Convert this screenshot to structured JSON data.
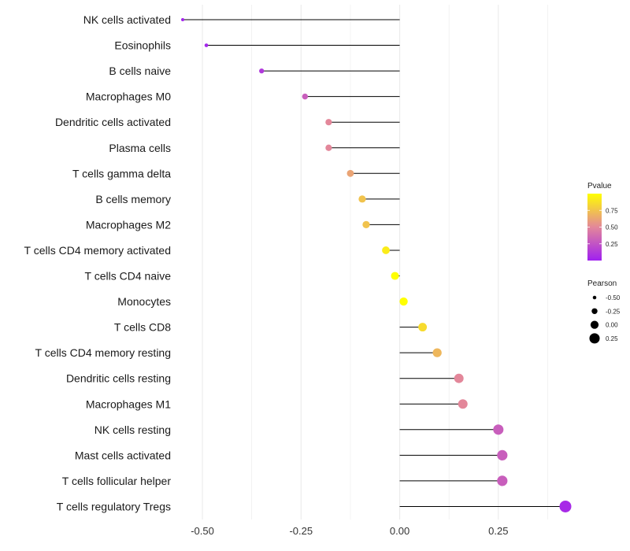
{
  "chart_data": {
    "type": "lollipop",
    "title": "",
    "xlabel": "",
    "ylabel": "",
    "xlim": [
      -0.55,
      0.44
    ],
    "x_ticks": [
      -0.5,
      -0.25,
      0.0,
      0.25
    ],
    "x_tick_labels": [
      "-0.50",
      "-0.25",
      "0.00",
      "0.25"
    ],
    "grid": true,
    "categories": [
      "NK cells activated",
      "Eosinophils",
      "B cells naive",
      "Macrophages M0",
      "Dendritic cells activated",
      "Plasma cells",
      "T cells gamma delta",
      "B cells memory",
      "Macrophages M2",
      "T cells CD4 memory activated",
      "T cells CD4 naive",
      "Monocytes",
      "T cells CD8",
      "T cells CD4 memory resting",
      "Dendritic cells resting",
      "Macrophages M1",
      "NK cells resting",
      "Mast cells activated",
      "T cells follicular helper",
      "T cells regulatory  Tregs"
    ],
    "pearson": [
      -0.55,
      -0.49,
      -0.35,
      -0.24,
      -0.18,
      -0.18,
      -0.125,
      -0.095,
      -0.085,
      -0.035,
      -0.012,
      0.01,
      0.058,
      0.095,
      0.15,
      0.16,
      0.25,
      0.26,
      0.26,
      0.42
    ],
    "pvalue": [
      0.02,
      0.03,
      0.12,
      0.3,
      0.5,
      0.5,
      0.62,
      0.75,
      0.75,
      0.92,
      1.0,
      1.0,
      0.85,
      0.7,
      0.5,
      0.5,
      0.3,
      0.3,
      0.3,
      0.05
    ],
    "color_legend": {
      "title": "Pvalue",
      "ticks": [
        0.25,
        0.5,
        0.75
      ],
      "tick_labels": [
        "0.25",
        "0.50",
        "0.75"
      ],
      "low_color": "#A020F0",
      "mid_color": "#E3879A",
      "high_color": "#FFFF00",
      "range": [
        0.0,
        1.0
      ]
    },
    "size_legend": {
      "title": "Pearson",
      "values": [
        -0.5,
        -0.25,
        0.0,
        0.25
      ],
      "labels": [
        "-0.50",
        "-0.25",
        "0.00",
        "0.25"
      ]
    },
    "colors": {
      "stem": "#000000",
      "grid": "#EBEBEB"
    }
  }
}
